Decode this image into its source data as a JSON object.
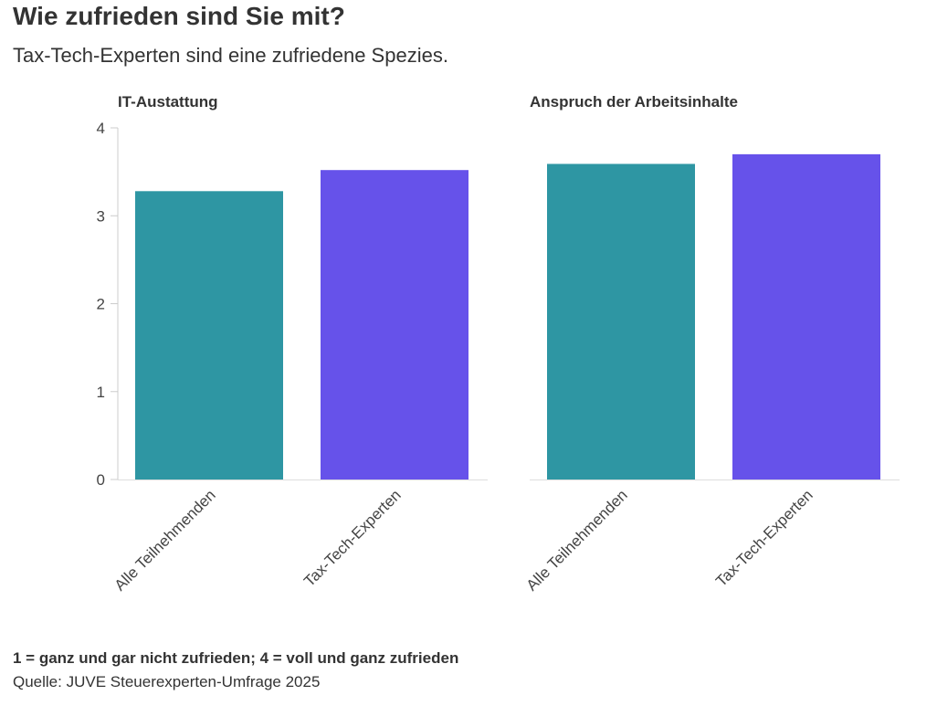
{
  "title": "Wie zufrieden sind Sie mit?",
  "subtitle": "Tax-Tech-Experten sind eine zufriedene Spezies.",
  "note": "1 = ganz und gar nicht zufrieden; 4 = voll und ganz zufrieden",
  "source": "Quelle: JUVE Steuerexperten-Umfrage 2025",
  "colors": {
    "alle": "#2e96a3",
    "taxtech": "#6652ea"
  },
  "chart_data": {
    "type": "bar",
    "categories": [
      "Alle Teilnehmenden",
      "Tax-Tech-Experten"
    ],
    "yticks": [
      0,
      1,
      2,
      3,
      4
    ],
    "ylim": [
      0,
      4
    ],
    "grid": false,
    "panels": [
      {
        "title": "IT-Austattung",
        "values": [
          3.28,
          3.52
        ]
      },
      {
        "title": "Anspruch der Arbeitsinhalte",
        "values": [
          3.59,
          3.7
        ]
      }
    ]
  }
}
